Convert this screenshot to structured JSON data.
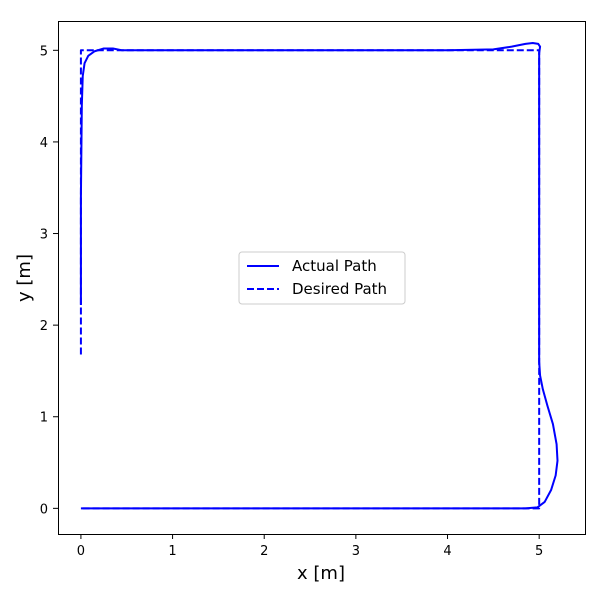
{
  "chart_data": {
    "type": "line",
    "xlabel": "x [m]",
    "ylabel": "y [m]",
    "xlim": [
      -0.25,
      5.5
    ],
    "ylim": [
      -0.28,
      5.32
    ],
    "xticks": [
      0,
      1,
      2,
      3,
      4,
      5
    ],
    "yticks": [
      0,
      1,
      2,
      3,
      4,
      5
    ],
    "grid": false,
    "legend_position": "center",
    "series": [
      {
        "name": "Actual Path",
        "style": "solid",
        "color": "#0000ff",
        "points": [
          [
            0.0,
            2.22
          ],
          [
            0.0,
            3.4
          ],
          [
            0.01,
            4.4
          ],
          [
            0.02,
            4.72
          ],
          [
            0.04,
            4.86
          ],
          [
            0.08,
            4.94
          ],
          [
            0.15,
            4.99
          ],
          [
            0.25,
            5.02
          ],
          [
            0.35,
            5.02
          ],
          [
            0.45,
            5.0
          ],
          [
            1.0,
            5.0
          ],
          [
            2.0,
            5.0
          ],
          [
            3.0,
            5.0
          ],
          [
            4.0,
            5.0
          ],
          [
            4.5,
            5.01
          ],
          [
            4.7,
            5.04
          ],
          [
            4.85,
            5.07
          ],
          [
            4.93,
            5.08
          ],
          [
            4.99,
            5.07
          ],
          [
            5.01,
            5.04
          ],
          [
            5.0,
            4.97
          ],
          [
            5.0,
            4.9
          ],
          [
            5.0,
            4.0
          ],
          [
            5.0,
            3.0
          ],
          [
            5.0,
            2.0
          ],
          [
            5.0,
            1.6
          ],
          [
            5.01,
            1.45
          ],
          [
            5.04,
            1.3
          ],
          [
            5.09,
            1.12
          ],
          [
            5.15,
            0.92
          ],
          [
            5.19,
            0.7
          ],
          [
            5.2,
            0.52
          ],
          [
            5.18,
            0.36
          ],
          [
            5.13,
            0.2
          ],
          [
            5.06,
            0.07
          ],
          [
            4.98,
            0.01
          ],
          [
            4.85,
            0.0
          ],
          [
            4.0,
            0.0
          ],
          [
            3.0,
            0.0
          ],
          [
            2.0,
            0.0
          ],
          [
            1.0,
            0.0
          ],
          [
            0.0,
            0.0
          ]
        ]
      },
      {
        "name": "Desired Path",
        "style": "dashed",
        "color": "#0000ff",
        "points": [
          [
            0.0,
            1.68
          ],
          [
            0.0,
            5.0
          ],
          [
            5.0,
            5.0
          ],
          [
            5.0,
            0.0
          ],
          [
            0.0,
            0.0
          ]
        ]
      }
    ]
  }
}
